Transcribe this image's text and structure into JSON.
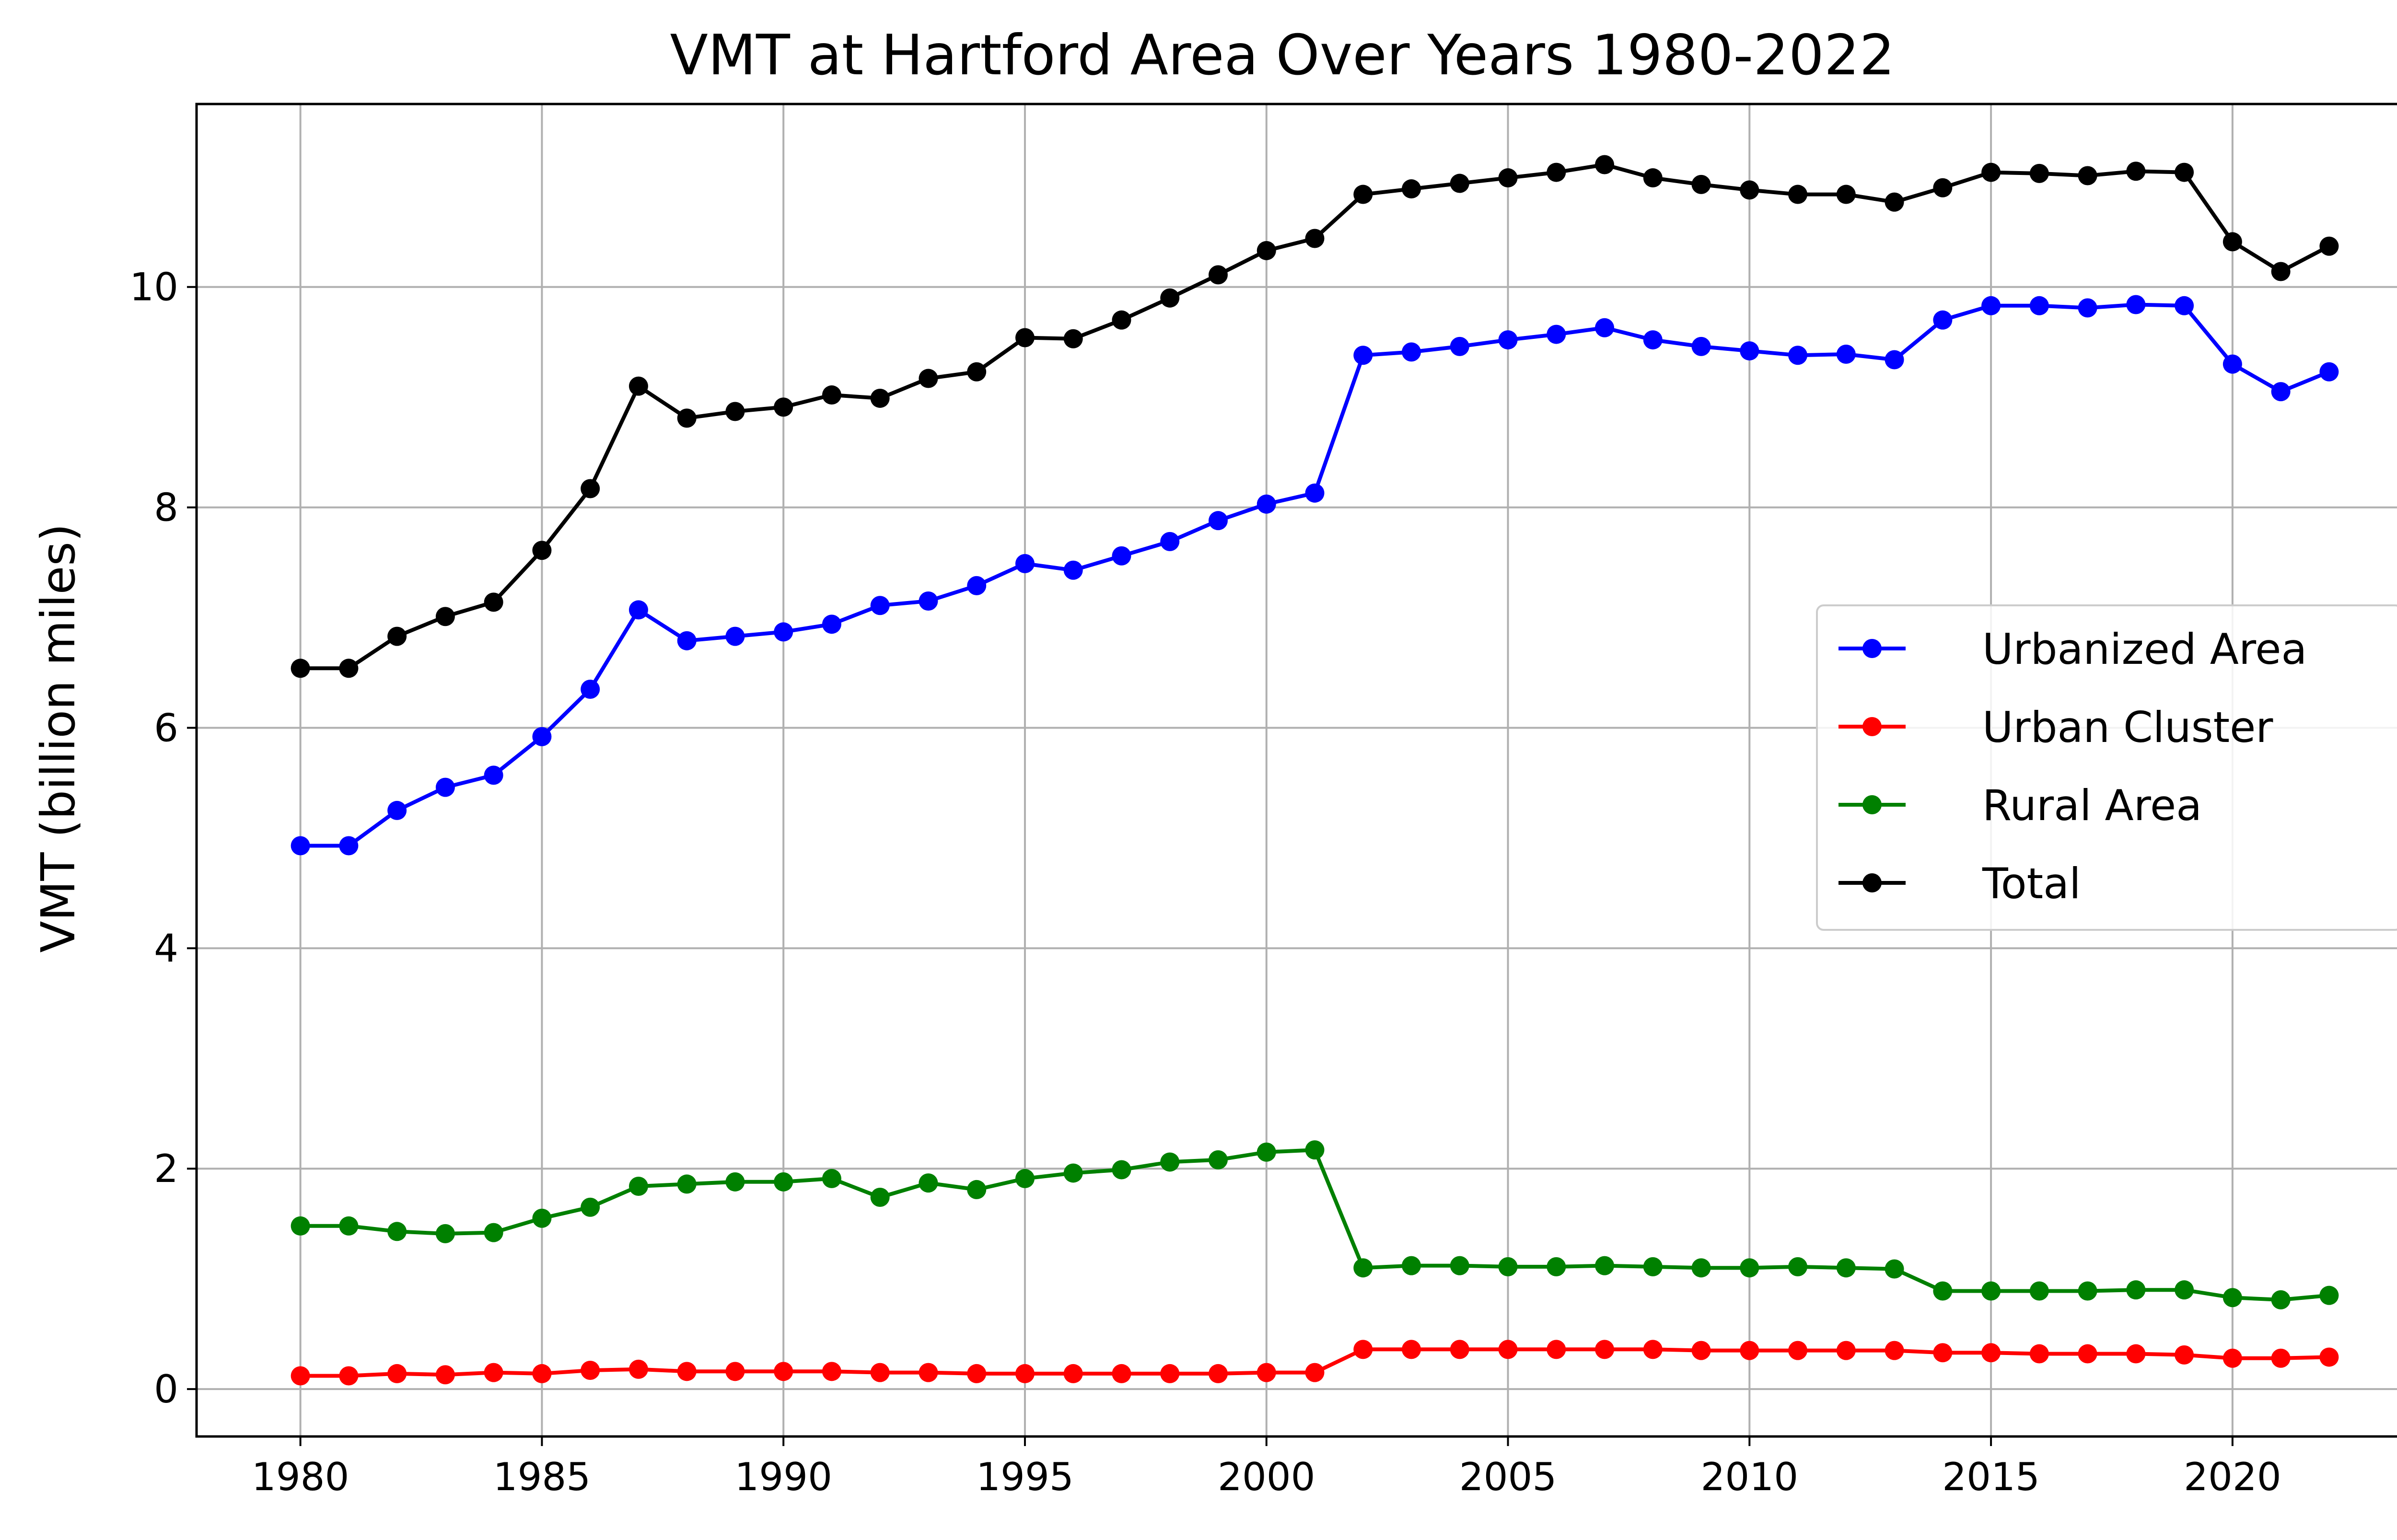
{
  "chart_data": {
    "type": "line",
    "title": "VMT at Hartford Area Over Years 1980-2022",
    "xlabel": "",
    "ylabel": "VMT (billion miles)",
    "xlim": [
      1977.85,
      2024.15
    ],
    "ylim": [
      -0.43,
      11.66
    ],
    "x_ticks": [
      1980,
      1985,
      1990,
      1995,
      2000,
      2005,
      2010,
      2015,
      2020
    ],
    "y_ticks": [
      0,
      2,
      4,
      6,
      8,
      10
    ],
    "grid": true,
    "legend_position": "center-right",
    "x": [
      1980,
      1981,
      1982,
      1983,
      1984,
      1985,
      1986,
      1987,
      1988,
      1989,
      1990,
      1991,
      1992,
      1993,
      1994,
      1995,
      1996,
      1997,
      1998,
      1999,
      2000,
      2001,
      2002,
      2003,
      2004,
      2005,
      2006,
      2007,
      2008,
      2009,
      2010,
      2011,
      2012,
      2013,
      2014,
      2015,
      2016,
      2017,
      2018,
      2019,
      2020,
      2021,
      2022
    ],
    "series": [
      {
        "name": "Urbanized Area",
        "color": "#0000ff",
        "values": [
          4.93,
          4.93,
          5.25,
          5.46,
          5.57,
          5.92,
          6.35,
          7.07,
          6.79,
          6.83,
          6.87,
          6.94,
          7.11,
          7.15,
          7.29,
          7.49,
          7.43,
          7.56,
          7.69,
          7.88,
          8.03,
          8.13,
          9.38,
          9.41,
          9.46,
          9.52,
          9.57,
          9.63,
          9.52,
          9.46,
          9.42,
          9.38,
          9.39,
          9.34,
          9.7,
          9.83,
          9.83,
          9.81,
          9.84,
          9.83,
          9.3,
          9.05,
          9.23
        ]
      },
      {
        "name": "Urban Cluster",
        "color": "#ff0000",
        "values": [
          0.12,
          0.12,
          0.14,
          0.13,
          0.15,
          0.14,
          0.17,
          0.18,
          0.16,
          0.16,
          0.16,
          0.16,
          0.15,
          0.15,
          0.14,
          0.14,
          0.14,
          0.14,
          0.14,
          0.14,
          0.15,
          0.15,
          0.36,
          0.36,
          0.36,
          0.36,
          0.36,
          0.36,
          0.36,
          0.35,
          0.35,
          0.35,
          0.35,
          0.35,
          0.33,
          0.33,
          0.32,
          0.32,
          0.32,
          0.31,
          0.28,
          0.28,
          0.29
        ]
      },
      {
        "name": "Rural Area",
        "color": "#008000",
        "values": [
          1.48,
          1.48,
          1.43,
          1.41,
          1.42,
          1.55,
          1.65,
          1.84,
          1.86,
          1.88,
          1.88,
          1.91,
          1.74,
          1.87,
          1.81,
          1.91,
          1.96,
          1.99,
          2.06,
          2.08,
          2.15,
          2.17,
          1.1,
          1.12,
          1.12,
          1.11,
          1.11,
          1.12,
          1.11,
          1.1,
          1.1,
          1.11,
          1.1,
          1.09,
          0.89,
          0.89,
          0.89,
          0.89,
          0.9,
          0.9,
          0.83,
          0.81,
          0.85
        ]
      },
      {
        "name": "Total",
        "color": "#000000",
        "values": [
          6.54,
          6.54,
          6.83,
          7.01,
          7.14,
          7.61,
          8.17,
          9.1,
          8.81,
          8.87,
          8.91,
          9.02,
          8.99,
          9.17,
          9.23,
          9.54,
          9.53,
          9.7,
          9.9,
          10.11,
          10.33,
          10.44,
          10.84,
          10.89,
          10.94,
          10.99,
          11.04,
          11.11,
          10.99,
          10.93,
          10.88,
          10.84,
          10.84,
          10.77,
          10.9,
          11.04,
          11.03,
          11.01,
          11.05,
          11.04,
          10.41,
          10.14,
          10.37
        ]
      }
    ]
  }
}
